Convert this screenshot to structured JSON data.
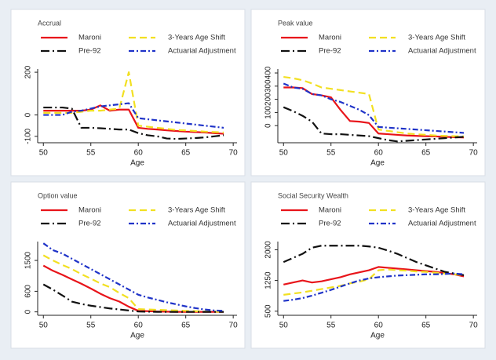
{
  "chart_data": [
    {
      "type": "line",
      "title": "Accrual",
      "x_label": "Age",
      "x": [
        50,
        51,
        52,
        53,
        54,
        55,
        56,
        57,
        58,
        59,
        60,
        61,
        62,
        63,
        64,
        65,
        66,
        67,
        68,
        69
      ],
      "xlim": [
        49.4,
        70.4
      ],
      "xticks": [
        50,
        55,
        60,
        65,
        70
      ],
      "ylim": [
        -130,
        215
      ],
      "yticks": [
        -100,
        0,
        200
      ],
      "series": [
        {
          "name": "Maroni",
          "color": "#e8141a",
          "values": [
            20,
            20,
            20,
            20,
            20,
            25,
            45,
            20,
            25,
            25,
            -60,
            -65,
            -68,
            -72,
            -75,
            -78,
            -80,
            -82,
            -85,
            -88
          ]
        },
        {
          "name": "3-Years Age Shift",
          "color": "#f2e022",
          "values": [
            10,
            10,
            10,
            10,
            15,
            20,
            20,
            25,
            30,
            200,
            -50,
            -55,
            -60,
            -65,
            -70,
            -72,
            -75,
            -78,
            -80,
            -82
          ]
        },
        {
          "name": "Pre-92",
          "color": "#111111",
          "values": [
            35,
            35,
            35,
            30,
            -60,
            -60,
            -62,
            -65,
            -68,
            -68,
            -85,
            -95,
            -100,
            -110,
            -112,
            -110,
            -108,
            -105,
            -100,
            -95
          ]
        },
        {
          "name": "Actuarial Adjustment",
          "color": "#1f33c8",
          "values": [
            0,
            0,
            0,
            15,
            20,
            30,
            40,
            45,
            50,
            55,
            -15,
            -20,
            -25,
            -30,
            -35,
            -40,
            -45,
            -50,
            -55,
            -60
          ]
        }
      ]
    },
    {
      "type": "line",
      "title": "Peak value",
      "x_label": "Age",
      "x": [
        50,
        51,
        52,
        53,
        54,
        55,
        56,
        57,
        58,
        59,
        60,
        61,
        62,
        63,
        64,
        65,
        66,
        67,
        68,
        69
      ],
      "xlim": [
        49.4,
        70.4
      ],
      "xticks": [
        50,
        55,
        60,
        65,
        70
      ],
      "ylim": [
        -130,
        430
      ],
      "yticks": [
        0,
        100,
        200,
        300,
        400
      ],
      "series": [
        {
          "name": "Maroni",
          "color": "#e8141a",
          "values": [
            290,
            290,
            285,
            240,
            230,
            215,
            120,
            35,
            30,
            20,
            -60,
            -65,
            -70,
            -75,
            -78,
            -80,
            -82,
            -85,
            -88,
            -90
          ]
        },
        {
          "name": "3-Years Age Shift",
          "color": "#f2e022",
          "values": [
            370,
            360,
            345,
            320,
            290,
            280,
            270,
            260,
            250,
            240,
            -30,
            -40,
            -50,
            -60,
            -65,
            -70,
            -75,
            -78,
            -80,
            -82
          ]
        },
        {
          "name": "Pre-92",
          "color": "#111111",
          "values": [
            140,
            110,
            75,
            30,
            -60,
            -65,
            -65,
            -70,
            -75,
            -80,
            -95,
            -110,
            -120,
            -115,
            -110,
            -105,
            -100,
            -95,
            -90,
            -85
          ]
        },
        {
          "name": "Actuarial Adjustment",
          "color": "#1f33c8",
          "values": [
            320,
            290,
            280,
            240,
            230,
            200,
            180,
            150,
            120,
            80,
            -10,
            -15,
            -20,
            -25,
            -30,
            -35,
            -40,
            -45,
            -50,
            -55
          ]
        }
      ]
    },
    {
      "type": "line",
      "title": "Option value",
      "x_label": "Age",
      "x": [
        50,
        51,
        52,
        53,
        54,
        55,
        56,
        57,
        58,
        59,
        60,
        61,
        62,
        63,
        64,
        65,
        66,
        67,
        68,
        69
      ],
      "xlim": [
        49.4,
        70.4
      ],
      "xticks": [
        50,
        55,
        60,
        65,
        70
      ],
      "ylim": [
        -100,
        2050
      ],
      "yticks": [
        0,
        600,
        1500
      ],
      "series": [
        {
          "name": "Maroni",
          "color": "#e8141a",
          "values": [
            1350,
            1200,
            1080,
            950,
            820,
            680,
            530,
            400,
            300,
            150,
            30,
            20,
            10,
            5,
            0,
            0,
            0,
            0,
            0,
            0
          ]
        },
        {
          "name": "3-Years Age Shift",
          "color": "#f2e022",
          "values": [
            1650,
            1500,
            1370,
            1250,
            1100,
            970,
            830,
            720,
            550,
            400,
            80,
            70,
            60,
            50,
            40,
            30,
            20,
            10,
            5,
            0
          ]
        },
        {
          "name": "Pre-92",
          "color": "#111111",
          "values": [
            800,
            650,
            480,
            300,
            230,
            180,
            140,
            100,
            70,
            40,
            10,
            5,
            0,
            0,
            0,
            0,
            0,
            0,
            0,
            0
          ]
        },
        {
          "name": "Actuarial Adjustment",
          "color": "#1f33c8",
          "values": [
            2000,
            1800,
            1700,
            1550,
            1400,
            1250,
            1100,
            950,
            800,
            650,
            500,
            420,
            350,
            280,
            220,
            160,
            110,
            70,
            40,
            30
          ]
        }
      ]
    },
    {
      "type": "line",
      "title": "Social Security Wealth",
      "x_label": "Age",
      "x": [
        50,
        51,
        52,
        53,
        54,
        55,
        56,
        57,
        58,
        59,
        60,
        61,
        62,
        63,
        64,
        65,
        66,
        67,
        68,
        69
      ],
      "xlim": [
        49.4,
        70.4
      ],
      "xticks": [
        50,
        55,
        60,
        65,
        70
      ],
      "ylim": [
        400,
        2200
      ],
      "yticks": [
        500,
        1250,
        2000
      ],
      "series": [
        {
          "name": "Maroni",
          "color": "#e8141a",
          "values": [
            1150,
            1200,
            1250,
            1200,
            1230,
            1280,
            1330,
            1400,
            1450,
            1500,
            1580,
            1560,
            1540,
            1520,
            1500,
            1480,
            1460,
            1430,
            1400,
            1350
          ]
        },
        {
          "name": "3-Years Age Shift",
          "color": "#f2e022",
          "values": [
            900,
            930,
            960,
            1000,
            1040,
            1080,
            1120,
            1180,
            1220,
            1280,
            1500,
            1520,
            1500,
            1490,
            1470,
            1460,
            1440,
            1420,
            1400,
            1380
          ]
        },
        {
          "name": "Pre-92",
          "color": "#111111",
          "values": [
            1700,
            1800,
            1900,
            2050,
            2100,
            2100,
            2100,
            2100,
            2100,
            2080,
            2050,
            1980,
            1900,
            1800,
            1700,
            1620,
            1540,
            1460,
            1420,
            1380
          ]
        },
        {
          "name": "Actuarial Adjustment",
          "color": "#1f33c8",
          "values": [
            750,
            780,
            820,
            880,
            950,
            1020,
            1100,
            1180,
            1250,
            1300,
            1330,
            1350,
            1370,
            1380,
            1390,
            1400,
            1400,
            1410,
            1420,
            1400
          ]
        }
      ]
    }
  ]
}
